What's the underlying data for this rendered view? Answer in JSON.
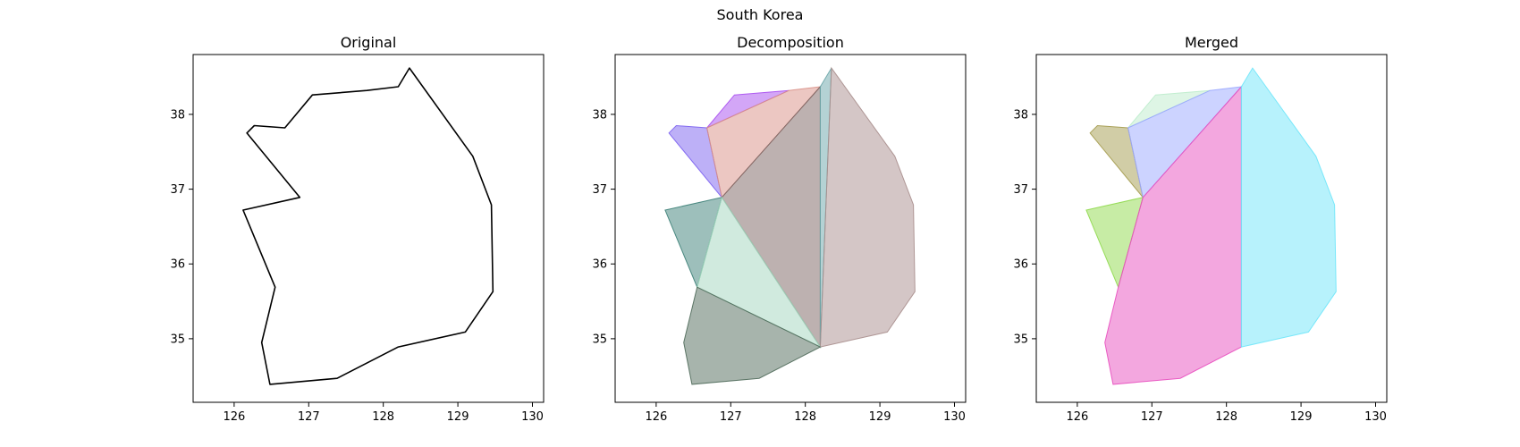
{
  "figure_title": "South Korea",
  "chart_data": [
    {
      "type": "polygon-outline",
      "title": "Original",
      "xlim": [
        125.45,
        130.15
      ],
      "ylim": [
        34.15,
        38.8
      ],
      "xticks": [
        126,
        127,
        128,
        129,
        130
      ],
      "yticks": [
        35,
        36,
        37,
        38
      ],
      "grid": false,
      "outline_color": "#000000",
      "polygons": [
        {
          "points": [
            [
              128.35,
              38.62
            ],
            [
              128.2,
              38.37
            ],
            [
              127.78,
              38.32
            ],
            [
              127.05,
              38.26
            ],
            [
              126.68,
              37.82
            ],
            [
              126.27,
              37.85
            ],
            [
              126.17,
              37.75
            ],
            [
              126.88,
              36.89
            ],
            [
              126.12,
              36.72
            ],
            [
              126.55,
              35.69
            ],
            [
              126.37,
              34.95
            ],
            [
              126.48,
              34.39
            ],
            [
              127.38,
              34.47
            ],
            [
              128.2,
              34.89
            ],
            [
              129.1,
              35.09
            ],
            [
              129.47,
              35.63
            ],
            [
              129.45,
              36.79
            ],
            [
              129.2,
              37.44
            ],
            [
              128.35,
              38.62
            ]
          ],
          "color": "none"
        }
      ]
    },
    {
      "type": "polygon-fill",
      "title": "Decomposition",
      "xlim": [
        125.45,
        130.15
      ],
      "ylim": [
        34.15,
        38.8
      ],
      "xticks": [
        126,
        127,
        128,
        129,
        130
      ],
      "yticks": [
        35,
        36,
        37,
        38
      ],
      "grid": false,
      "polygons": [
        {
          "points": [
            [
              126.17,
              37.75
            ],
            [
              126.27,
              37.85
            ],
            [
              126.68,
              37.82
            ],
            [
              126.88,
              36.89
            ]
          ],
          "color": "#7b61f0"
        },
        {
          "points": [
            [
              126.68,
              37.82
            ],
            [
              127.05,
              38.26
            ],
            [
              127.78,
              38.32
            ]
          ],
          "color": "#a84ef0"
        },
        {
          "points": [
            [
              126.68,
              37.82
            ],
            [
              127.78,
              38.32
            ],
            [
              128.2,
              38.37
            ],
            [
              126.88,
              36.89
            ]
          ],
          "color": "#d98f86"
        },
        {
          "points": [
            [
              126.88,
              36.89
            ],
            [
              128.2,
              38.37
            ],
            [
              128.2,
              34.89
            ]
          ],
          "color": "#7b6462"
        },
        {
          "points": [
            [
              128.2,
              38.37
            ],
            [
              128.35,
              38.62
            ],
            [
              128.2,
              34.89
            ]
          ],
          "color": "#6aa6a9"
        },
        {
          "points": [
            [
              128.35,
              38.62
            ],
            [
              129.2,
              37.44
            ],
            [
              129.45,
              36.79
            ],
            [
              129.47,
              35.63
            ],
            [
              129.1,
              35.09
            ],
            [
              128.2,
              34.89
            ]
          ],
          "color": "#a98e8d"
        },
        {
          "points": [
            [
              126.12,
              36.72
            ],
            [
              126.88,
              36.89
            ],
            [
              126.55,
              35.69
            ]
          ],
          "color": "#3c7f77"
        },
        {
          "points": [
            [
              126.88,
              36.89
            ],
            [
              128.2,
              34.89
            ],
            [
              126.55,
              35.69
            ]
          ],
          "color": "#a1d6bd"
        },
        {
          "points": [
            [
              126.55,
              35.69
            ],
            [
              128.2,
              34.89
            ],
            [
              127.38,
              34.47
            ],
            [
              126.48,
              34.39
            ],
            [
              126.37,
              34.95
            ]
          ],
          "color": "#4f6a5a"
        }
      ]
    },
    {
      "type": "polygon-fill",
      "title": "Merged",
      "xlim": [
        125.45,
        130.15
      ],
      "ylim": [
        34.15,
        38.8
      ],
      "xticks": [
        126,
        127,
        128,
        129,
        130
      ],
      "yticks": [
        35,
        36,
        37,
        38
      ],
      "grid": false,
      "polygons": [
        {
          "points": [
            [
              126.17,
              37.75
            ],
            [
              126.27,
              37.85
            ],
            [
              126.68,
              37.82
            ],
            [
              126.88,
              36.89
            ]
          ],
          "color": "#a49b4e"
        },
        {
          "points": [
            [
              126.68,
              37.82
            ],
            [
              127.05,
              38.26
            ],
            [
              127.78,
              38.32
            ]
          ],
          "color": "#bdeccc"
        },
        {
          "points": [
            [
              126.68,
              37.82
            ],
            [
              127.78,
              38.32
            ],
            [
              128.2,
              38.37
            ],
            [
              126.88,
              36.89
            ]
          ],
          "color": "#9aa7ff"
        },
        {
          "points": [
            [
              126.12,
              36.72
            ],
            [
              126.88,
              36.89
            ],
            [
              126.55,
              35.69
            ]
          ],
          "color": "#8fd94c"
        },
        {
          "points": [
            [
              126.88,
              36.89
            ],
            [
              128.2,
              38.37
            ],
            [
              128.2,
              34.89
            ],
            [
              127.38,
              34.47
            ],
            [
              126.48,
              34.39
            ],
            [
              126.37,
              34.95
            ],
            [
              126.55,
              35.69
            ]
          ],
          "color": "#e84fbf"
        },
        {
          "points": [
            [
              128.2,
              38.37
            ],
            [
              128.35,
              38.62
            ],
            [
              129.2,
              37.44
            ],
            [
              129.45,
              36.79
            ],
            [
              129.47,
              35.63
            ],
            [
              129.1,
              35.09
            ],
            [
              128.2,
              34.89
            ]
          ],
          "color": "#6fe6fa"
        }
      ]
    }
  ]
}
